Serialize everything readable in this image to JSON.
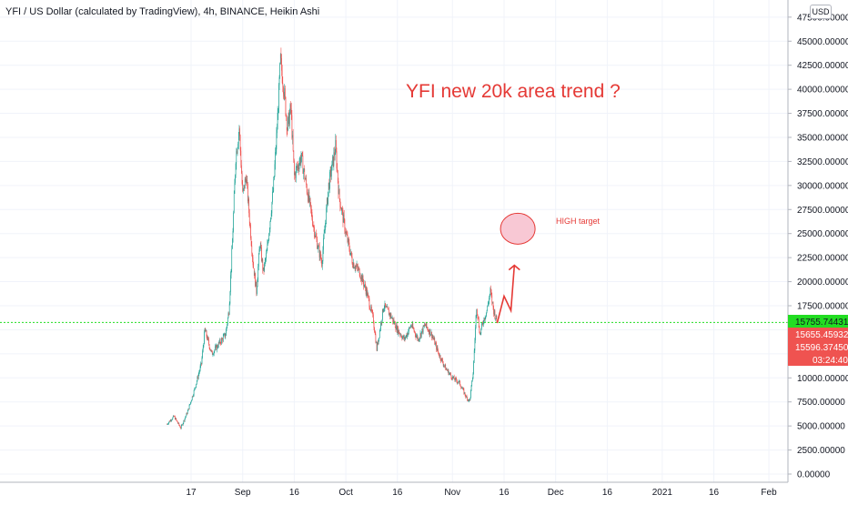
{
  "header": {
    "symbol_line": "YFI / US Dollar (calculated by TradingView), 4h, BINANCE, Heikin Ashi",
    "currency": "USD"
  },
  "annotations": {
    "headline": "YFI new 20k area trend ?",
    "target_label": "HIGH target"
  },
  "price_labels": {
    "horizontal_line": "15755.74431",
    "last_a": "15655.45932",
    "last_b": "15596.37450",
    "countdown": "03:24:40"
  },
  "colors": {
    "up": "#26a69a",
    "down": "#ef5350",
    "annotation": "#e53935",
    "h_line": "#22dd22"
  },
  "chart_data": {
    "type": "candlestick",
    "ylim": [
      0,
      47500
    ],
    "y_ticks": [
      "0.00000",
      "2500.00000",
      "5000.00000",
      "7500.00000",
      "10000.00000",
      "12500.00000",
      "15000.00000",
      "17500.00000",
      "20000.00000",
      "22500.00000",
      "25000.00000",
      "27500.00000",
      "30000.00000",
      "32500.00000",
      "35000.00000",
      "37500.00000",
      "40000.00000",
      "42500.00000",
      "45000.00000",
      "47500.00000"
    ],
    "x_ticks": [
      "17",
      "Sep",
      "16",
      "Oct",
      "16",
      "Nov",
      "16",
      "Dec",
      "16",
      "2021",
      "16",
      "Feb"
    ],
    "horizontal_level": 15755.74431,
    "price_path": [
      {
        "date": "2020-08-10",
        "price": 5200
      },
      {
        "date": "2020-08-12",
        "price": 6000
      },
      {
        "date": "2020-08-14",
        "price": 4800
      },
      {
        "date": "2020-08-16",
        "price": 6500
      },
      {
        "date": "2020-08-18",
        "price": 8800
      },
      {
        "date": "2020-08-20",
        "price": 11500
      },
      {
        "date": "2020-08-21",
        "price": 15000
      },
      {
        "date": "2020-08-23",
        "price": 12500
      },
      {
        "date": "2020-08-25",
        "price": 13500
      },
      {
        "date": "2020-08-27",
        "price": 14500
      },
      {
        "date": "2020-08-28",
        "price": 17000
      },
      {
        "date": "2020-08-29",
        "price": 24000
      },
      {
        "date": "2020-08-30",
        "price": 33000
      },
      {
        "date": "2020-08-31",
        "price": 36000
      },
      {
        "date": "2020-09-01",
        "price": 29000
      },
      {
        "date": "2020-09-02",
        "price": 31000
      },
      {
        "date": "2020-09-04",
        "price": 22000
      },
      {
        "date": "2020-09-05",
        "price": 19000
      },
      {
        "date": "2020-09-06",
        "price": 24000
      },
      {
        "date": "2020-09-07",
        "price": 21000
      },
      {
        "date": "2020-09-08",
        "price": 23000
      },
      {
        "date": "2020-09-10",
        "price": 30000
      },
      {
        "date": "2020-09-11",
        "price": 36000
      },
      {
        "date": "2020-09-12",
        "price": 43000
      },
      {
        "date": "2020-09-13",
        "price": 40000
      },
      {
        "date": "2020-09-14",
        "price": 36000
      },
      {
        "date": "2020-09-15",
        "price": 38000
      },
      {
        "date": "2020-09-16",
        "price": 31000
      },
      {
        "date": "2020-09-18",
        "price": 33000
      },
      {
        "date": "2020-09-20",
        "price": 29000
      },
      {
        "date": "2020-09-22",
        "price": 25000
      },
      {
        "date": "2020-09-24",
        "price": 22000
      },
      {
        "date": "2020-09-26",
        "price": 30000
      },
      {
        "date": "2020-09-28",
        "price": 34000
      },
      {
        "date": "2020-09-29",
        "price": 29000
      },
      {
        "date": "2020-10-01",
        "price": 25000
      },
      {
        "date": "2020-10-03",
        "price": 22000
      },
      {
        "date": "2020-10-05",
        "price": 21000
      },
      {
        "date": "2020-10-07",
        "price": 19000
      },
      {
        "date": "2020-10-09",
        "price": 16000
      },
      {
        "date": "2020-10-10",
        "price": 13000
      },
      {
        "date": "2020-10-12",
        "price": 17500
      },
      {
        "date": "2020-10-14",
        "price": 16500
      },
      {
        "date": "2020-10-16",
        "price": 15000
      },
      {
        "date": "2020-10-18",
        "price": 14000
      },
      {
        "date": "2020-10-20",
        "price": 15500
      },
      {
        "date": "2020-10-22",
        "price": 14000
      },
      {
        "date": "2020-10-24",
        "price": 15500
      },
      {
        "date": "2020-10-26",
        "price": 14500
      },
      {
        "date": "2020-10-28",
        "price": 12500
      },
      {
        "date": "2020-10-30",
        "price": 11000
      },
      {
        "date": "2020-11-01",
        "price": 10000
      },
      {
        "date": "2020-11-03",
        "price": 9500
      },
      {
        "date": "2020-11-05",
        "price": 8000
      },
      {
        "date": "2020-11-06",
        "price": 7600
      },
      {
        "date": "2020-11-07",
        "price": 10500
      },
      {
        "date": "2020-11-08",
        "price": 17500
      },
      {
        "date": "2020-11-09",
        "price": 14500
      },
      {
        "date": "2020-11-10",
        "price": 16000
      },
      {
        "date": "2020-11-11",
        "price": 17000
      },
      {
        "date": "2020-11-12",
        "price": 19000
      },
      {
        "date": "2020-11-13",
        "price": 17000
      },
      {
        "date": "2020-11-14",
        "price": 15700
      }
    ],
    "projection": [
      {
        "date": "2020-11-14",
        "price": 15700
      },
      {
        "date": "2020-11-16",
        "price": 18500
      },
      {
        "date": "2020-11-18",
        "price": 17000
      },
      {
        "date": "2020-11-19",
        "price": 21700
      }
    ],
    "target_zone": {
      "date": "2020-11-20",
      "price": 25500
    }
  }
}
